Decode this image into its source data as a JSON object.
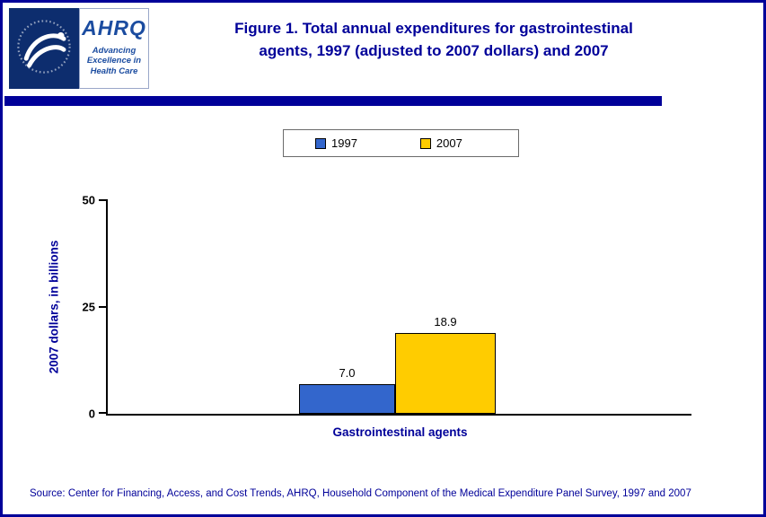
{
  "header": {
    "ahrq_logo": {
      "acronym": "AHRQ",
      "tagline_lines": [
        "Advancing",
        "Excellence in",
        "Health Care"
      ]
    },
    "title_lines": [
      "Figure 1. Total annual expenditures for gastrointestinal",
      "agents, 1997 (adjusted to 2007 dollars) and 2007"
    ]
  },
  "chart_data": {
    "type": "bar",
    "title": "Figure 1. Total annual expenditures for gastrointestinal agents, 1997 (adjusted to 2007 dollars) and 2007",
    "categories": [
      "Gastrointestinal agents"
    ],
    "series": [
      {
        "name": "1997",
        "values": [
          7.0
        ],
        "value_label": "7.0",
        "color": "#3366cc"
      },
      {
        "name": "2007",
        "values": [
          18.9
        ],
        "value_label": "18.9",
        "color": "#ffcc00"
      }
    ],
    "xlabel": "Gastrointestinal agents",
    "ylabel": "2007 dollars, in billions",
    "ylim": [
      0,
      50
    ],
    "yticks": [
      0,
      25,
      50
    ],
    "legend_position": "top",
    "grid": false
  },
  "footer": {
    "source": "Source: Center for Financing, Access, and Cost Trends, AHRQ, Household Component of the Medical Expenditure Panel Survey, 1997 and 2007"
  },
  "colors": {
    "accent": "#000099",
    "bar_1997": "#3366cc",
    "bar_2007": "#ffcc00"
  }
}
